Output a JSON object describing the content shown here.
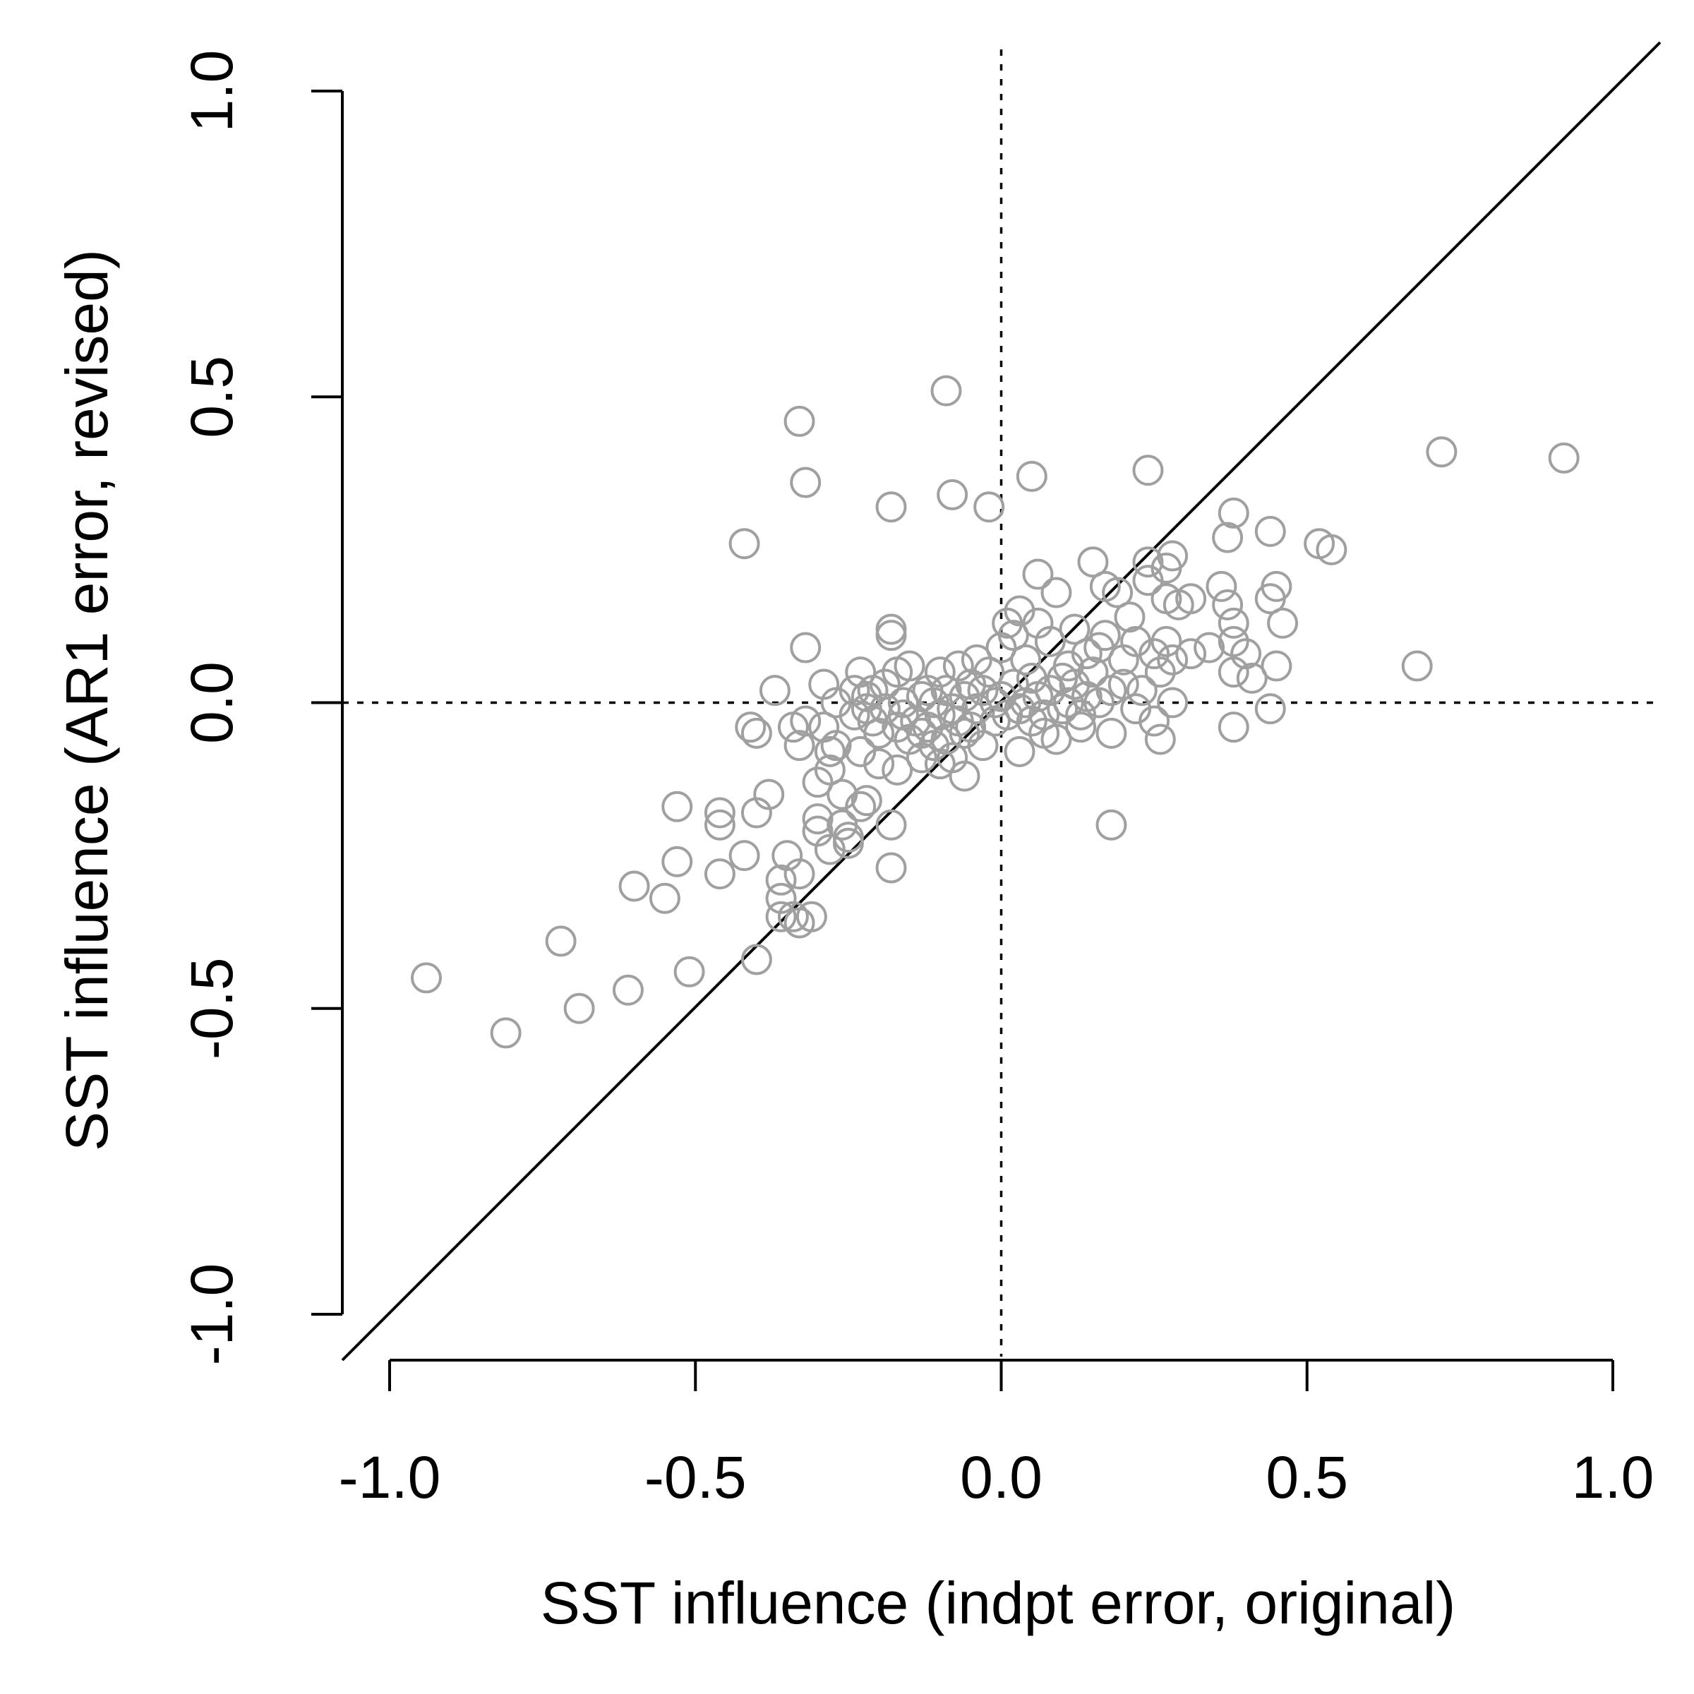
{
  "chart_data": {
    "type": "scatter",
    "xlabel": "SST influence (indpt error, original)",
    "ylabel": "SST influence (AR1 error, revised)",
    "xlim": [
      -1.0,
      1.0
    ],
    "ylim": [
      -1.0,
      1.0
    ],
    "x_ticks": [
      "-1.0",
      "-0.5",
      "0.0",
      "0.5",
      "1.0"
    ],
    "y_ticks": [
      "-1.0",
      "-0.5",
      "0.0",
      "0.5",
      "1.0"
    ],
    "reference_lines": [
      {
        "kind": "identity",
        "style": "solid"
      },
      {
        "kind": "vertical",
        "x": 0.0,
        "style": "dotted"
      },
      {
        "kind": "horizontal",
        "y": 0.0,
        "style": "dotted"
      }
    ],
    "point_color": "#a0a0a0",
    "line_color": "#000000",
    "series": [
      {
        "points": [
          [
            -0.94,
            -0.45
          ],
          [
            -0.81,
            -0.54
          ],
          [
            -0.72,
            -0.39
          ],
          [
            -0.69,
            -0.5
          ],
          [
            -0.61,
            -0.47
          ],
          [
            -0.6,
            -0.3
          ],
          [
            -0.55,
            -0.32
          ],
          [
            -0.53,
            -0.26
          ],
          [
            -0.53,
            -0.17
          ],
          [
            -0.51,
            -0.44
          ],
          [
            -0.46,
            -0.18
          ],
          [
            -0.46,
            -0.2
          ],
          [
            -0.46,
            -0.28
          ],
          [
            -0.42,
            0.26
          ],
          [
            -0.42,
            -0.25
          ],
          [
            -0.41,
            -0.04
          ],
          [
            -0.4,
            -0.42
          ],
          [
            -0.4,
            -0.05
          ],
          [
            -0.4,
            -0.18
          ],
          [
            -0.38,
            -0.15
          ],
          [
            -0.37,
            0.02
          ],
          [
            -0.36,
            -0.29
          ],
          [
            -0.36,
            -0.32
          ],
          [
            -0.36,
            -0.35
          ],
          [
            -0.35,
            -0.25
          ],
          [
            -0.34,
            -0.04
          ],
          [
            -0.34,
            -0.35
          ],
          [
            -0.33,
            0.46
          ],
          [
            -0.33,
            -0.07
          ],
          [
            -0.33,
            -0.28
          ],
          [
            -0.33,
            -0.36
          ],
          [
            -0.32,
            0.36
          ],
          [
            -0.32,
            0.09
          ],
          [
            -0.32,
            -0.03
          ],
          [
            -0.31,
            -0.35
          ],
          [
            -0.3,
            -0.13
          ],
          [
            -0.3,
            -0.19
          ],
          [
            -0.3,
            -0.21
          ],
          [
            -0.29,
            0.03
          ],
          [
            -0.29,
            -0.04
          ],
          [
            -0.28,
            -0.08
          ],
          [
            -0.28,
            -0.11
          ],
          [
            -0.28,
            -0.24
          ],
          [
            -0.27,
            0.0
          ],
          [
            -0.27,
            -0.07
          ],
          [
            -0.26,
            -0.15
          ],
          [
            -0.26,
            -0.2
          ],
          [
            -0.25,
            -0.22
          ],
          [
            -0.25,
            -0.23
          ],
          [
            -0.24,
            0.02
          ],
          [
            -0.24,
            -0.02
          ],
          [
            -0.23,
            0.05
          ],
          [
            -0.23,
            -0.08
          ],
          [
            -0.23,
            -0.17
          ],
          [
            -0.22,
            0.01
          ],
          [
            -0.22,
            -0.01
          ],
          [
            -0.22,
            -0.16
          ],
          [
            -0.21,
            0.02
          ],
          [
            -0.21,
            -0.03
          ],
          [
            -0.2,
            -0.05
          ],
          [
            -0.2,
            -0.1
          ],
          [
            -0.19,
            0.03
          ],
          [
            -0.19,
            -0.01
          ],
          [
            -0.18,
            0.32
          ],
          [
            -0.18,
            0.12
          ],
          [
            -0.18,
            0.11
          ],
          [
            -0.18,
            -0.2
          ],
          [
            -0.18,
            -0.27
          ],
          [
            -0.17,
            0.05
          ],
          [
            -0.17,
            -0.04
          ],
          [
            -0.17,
            -0.11
          ],
          [
            -0.16,
            0.0
          ],
          [
            -0.16,
            -0.02
          ],
          [
            -0.15,
            0.06
          ],
          [
            -0.15,
            -0.06
          ],
          [
            -0.14,
            -0.03
          ],
          [
            -0.13,
            0.01
          ],
          [
            -0.13,
            -0.05
          ],
          [
            -0.13,
            -0.09
          ],
          [
            -0.12,
            0.02
          ],
          [
            -0.12,
            -0.04
          ],
          [
            -0.11,
            0.0
          ],
          [
            -0.11,
            -0.07
          ],
          [
            -0.1,
            0.05
          ],
          [
            -0.1,
            -0.02
          ],
          [
            -0.1,
            -0.1
          ],
          [
            -0.09,
            0.51
          ],
          [
            -0.09,
            0.02
          ],
          [
            -0.09,
            -0.06
          ],
          [
            -0.08,
            0.34
          ],
          [
            -0.08,
            -0.01
          ],
          [
            -0.08,
            -0.09
          ],
          [
            -0.07,
            0.06
          ],
          [
            -0.07,
            -0.03
          ],
          [
            -0.06,
            0.01
          ],
          [
            -0.06,
            -0.05
          ],
          [
            -0.06,
            -0.12
          ],
          [
            -0.05,
            0.03
          ],
          [
            -0.05,
            -0.04
          ],
          [
            -0.04,
            0.07
          ],
          [
            -0.04,
            -0.01
          ],
          [
            -0.03,
            0.02
          ],
          [
            -0.03,
            -0.07
          ],
          [
            -0.02,
            0.32
          ],
          [
            -0.02,
            0.05
          ],
          [
            -0.01,
            0.0
          ],
          [
            -0.01,
            -0.03
          ],
          [
            0.0,
            0.09
          ],
          [
            0.0,
            0.01
          ],
          [
            0.01,
            0.13
          ],
          [
            0.01,
            -0.02
          ],
          [
            0.02,
            0.11
          ],
          [
            0.02,
            0.03
          ],
          [
            0.03,
            0.15
          ],
          [
            0.03,
            -0.01
          ],
          [
            0.03,
            -0.08
          ],
          [
            0.04,
            0.07
          ],
          [
            0.04,
            0.0
          ],
          [
            0.05,
            0.37
          ],
          [
            0.05,
            0.04
          ],
          [
            0.05,
            -0.03
          ],
          [
            0.06,
            0.21
          ],
          [
            0.06,
            0.13
          ],
          [
            0.06,
            0.01
          ],
          [
            0.07,
            -0.02
          ],
          [
            0.07,
            -0.05
          ],
          [
            0.08,
            0.1
          ],
          [
            0.08,
            0.02
          ],
          [
            0.09,
            0.18
          ],
          [
            0.09,
            -0.06
          ],
          [
            0.1,
            0.04
          ],
          [
            0.1,
            -0.01
          ],
          [
            0.11,
            0.06
          ],
          [
            0.11,
            0.0
          ],
          [
            0.12,
            0.12
          ],
          [
            0.12,
            0.03
          ],
          [
            0.13,
            -0.02
          ],
          [
            0.13,
            -0.04
          ],
          [
            0.14,
            0.08
          ],
          [
            0.14,
            0.01
          ],
          [
            0.15,
            0.23
          ],
          [
            0.15,
            0.05
          ],
          [
            0.16,
            0.0
          ],
          [
            0.16,
            0.09
          ],
          [
            0.17,
            0.19
          ],
          [
            0.17,
            0.11
          ],
          [
            0.18,
            0.02
          ],
          [
            0.18,
            -0.05
          ],
          [
            0.18,
            -0.2
          ],
          [
            0.19,
            0.18
          ],
          [
            0.2,
            0.03
          ],
          [
            0.2,
            0.07
          ],
          [
            0.21,
            0.14
          ],
          [
            0.22,
            -0.01
          ],
          [
            0.22,
            0.1
          ],
          [
            0.23,
            0.02
          ],
          [
            0.24,
            0.38
          ],
          [
            0.24,
            0.23
          ],
          [
            0.24,
            0.2
          ],
          [
            0.25,
            -0.03
          ],
          [
            0.25,
            0.08
          ],
          [
            0.26,
            0.05
          ],
          [
            0.26,
            -0.06
          ],
          [
            0.27,
            0.22
          ],
          [
            0.27,
            0.17
          ],
          [
            0.27,
            0.1
          ],
          [
            0.28,
            0.24
          ],
          [
            0.28,
            0.07
          ],
          [
            0.28,
            0.0
          ],
          [
            0.29,
            0.16
          ],
          [
            0.31,
            0.17
          ],
          [
            0.31,
            0.08
          ],
          [
            0.34,
            0.09
          ],
          [
            0.36,
            0.19
          ],
          [
            0.37,
            0.27
          ],
          [
            0.37,
            0.16
          ],
          [
            0.38,
            0.31
          ],
          [
            0.38,
            0.13
          ],
          [
            0.38,
            0.1
          ],
          [
            0.38,
            0.05
          ],
          [
            0.38,
            -0.04
          ],
          [
            0.4,
            0.08
          ],
          [
            0.41,
            0.04
          ],
          [
            0.44,
            0.28
          ],
          [
            0.44,
            0.17
          ],
          [
            0.44,
            -0.01
          ],
          [
            0.45,
            0.19
          ],
          [
            0.45,
            0.06
          ],
          [
            0.46,
            0.13
          ],
          [
            0.52,
            0.26
          ],
          [
            0.54,
            0.25
          ],
          [
            0.68,
            0.06
          ],
          [
            0.72,
            0.41
          ],
          [
            0.92,
            0.4
          ]
        ]
      }
    ]
  }
}
